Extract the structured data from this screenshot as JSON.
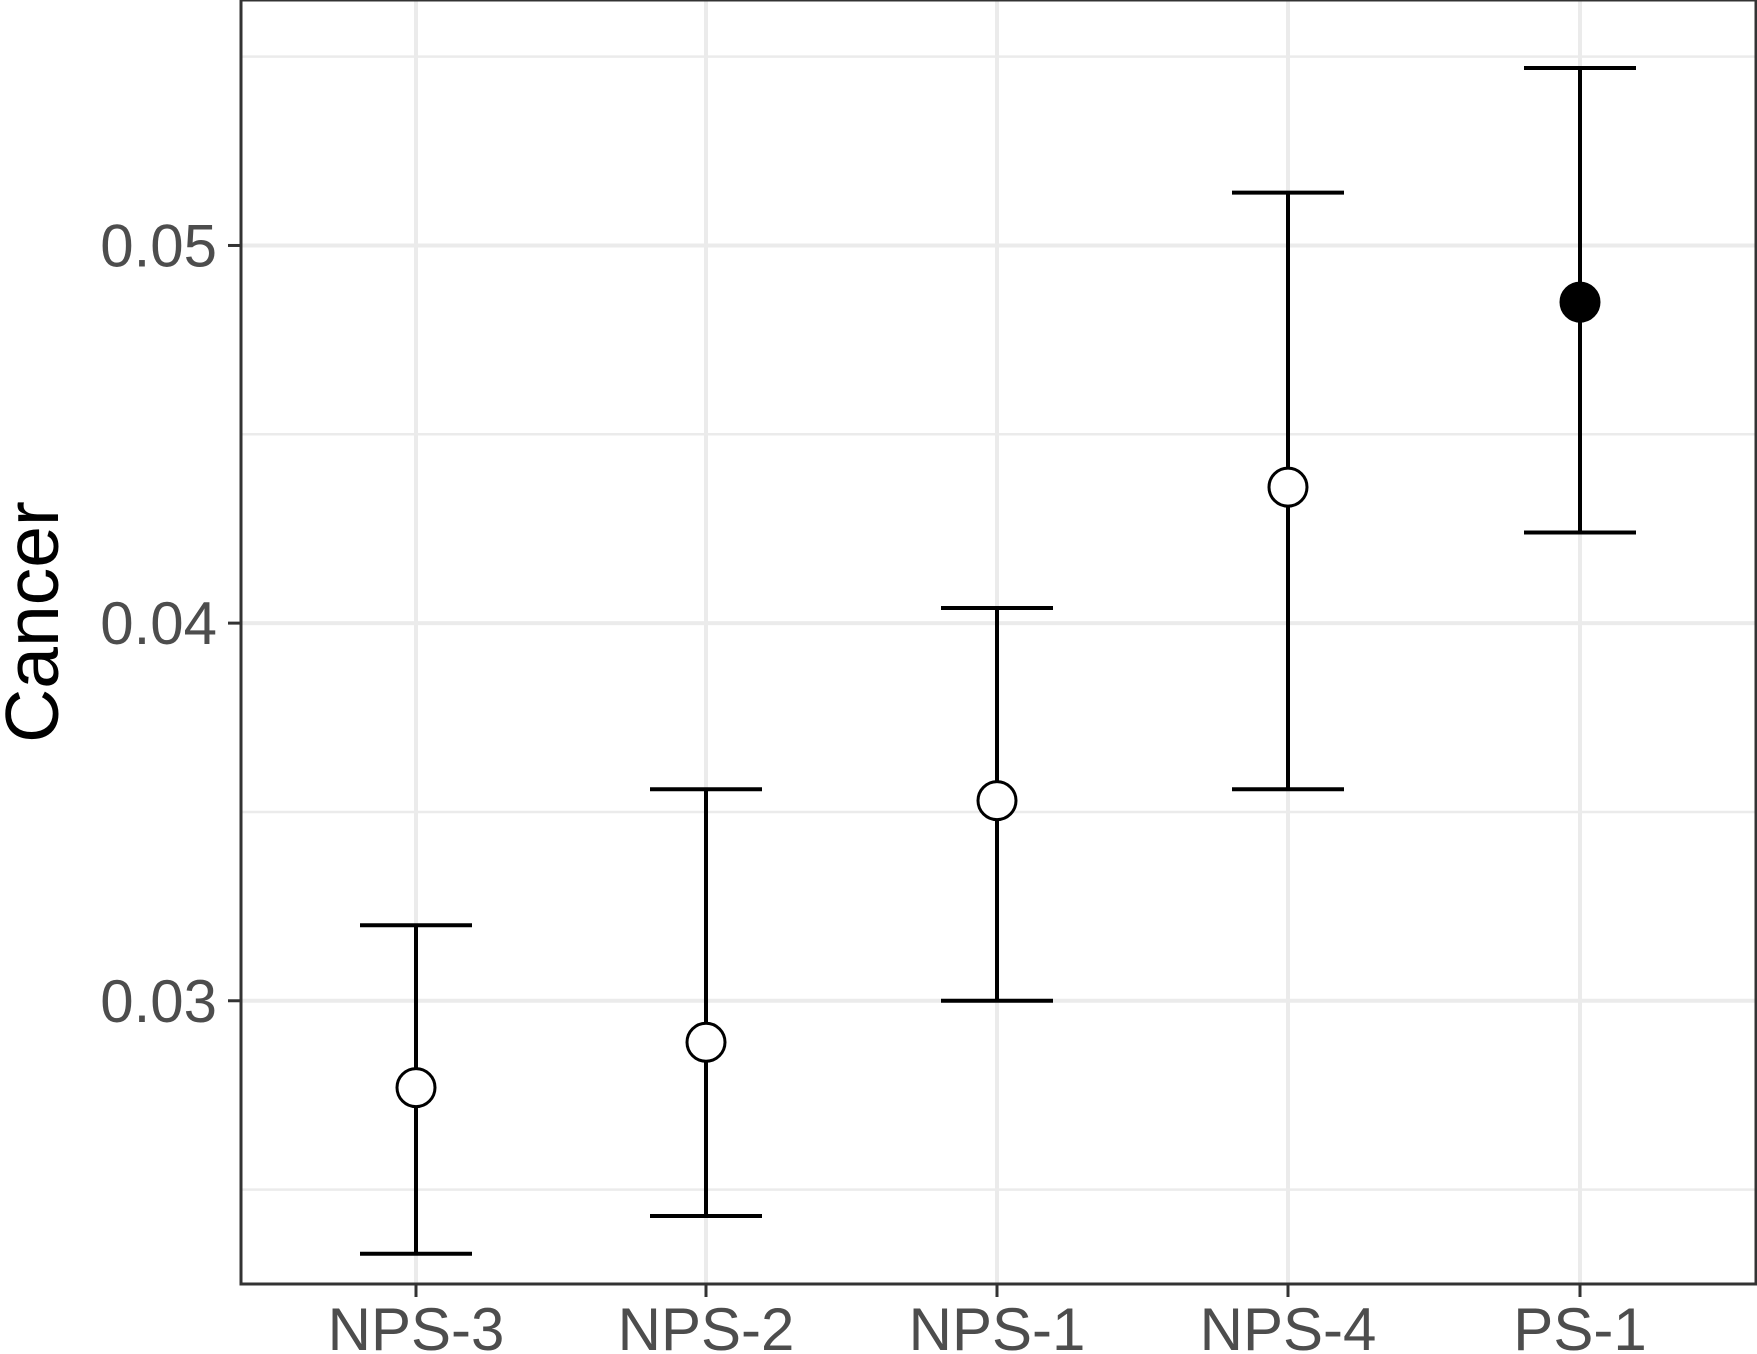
{
  "chart_data": {
    "type": "errorbar",
    "title": "",
    "xlabel": "",
    "ylabel": "Cancer",
    "ylim": [
      0.0225,
      0.0565
    ],
    "yticks": [
      "0.03",
      "0.04",
      "0.05"
    ],
    "ytick_values": [
      0.03,
      0.04,
      0.05
    ],
    "categories": [
      "NPS-3",
      "NPS-2",
      "NPS-1",
      "NPS-4",
      "PS-1"
    ],
    "estimates": [
      0.0277,
      0.0289,
      0.0353,
      0.0436,
      0.0485
    ],
    "lower": [
      0.0233,
      0.0243,
      0.03,
      0.0356,
      0.0424
    ],
    "upper": [
      0.032,
      0.0356,
      0.0404,
      0.0514,
      0.0547
    ],
    "filled": [
      false,
      false,
      false,
      false,
      true
    ],
    "grid": true,
    "legend": "none"
  },
  "colors": {
    "background": "#ffffff",
    "grid": "#ebebeb",
    "panel_border": "#333333",
    "marks": "#000000",
    "tick_text": "#4d4d4d"
  }
}
